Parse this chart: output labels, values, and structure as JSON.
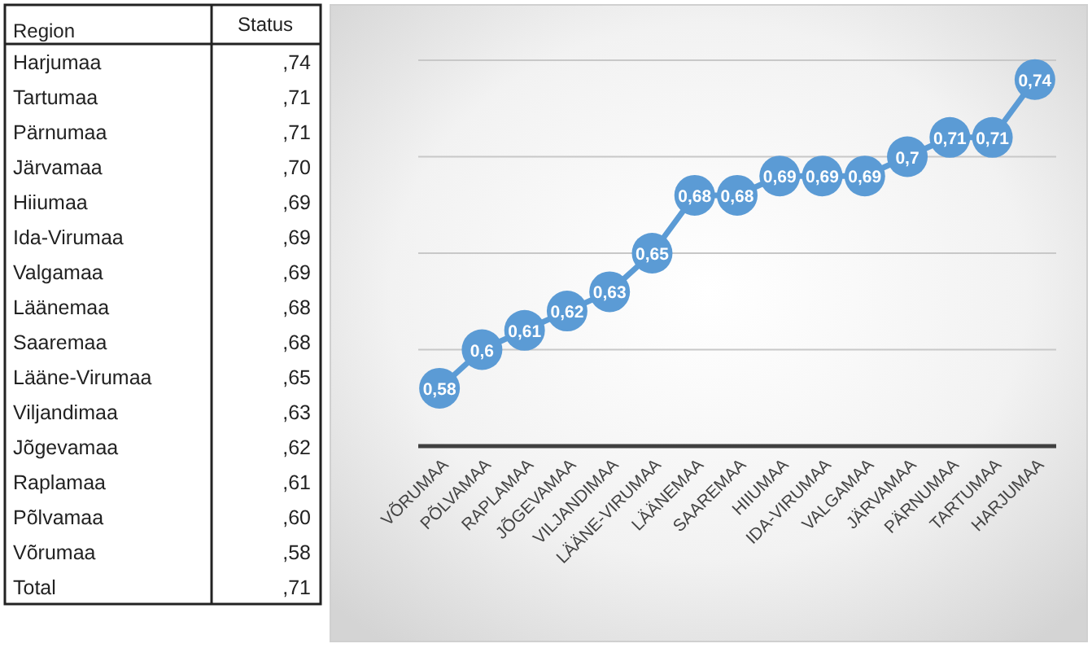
{
  "chart_data": [
    {
      "type": "other",
      "annotations": [
        "Region",
        "Status"
      ],
      "categories": [
        "Harjumaa",
        "Tartumaa",
        "Pärnumaa",
        "Järvamaa",
        "Hiiumaa",
        "Ida-Virumaa",
        "Valgamaa",
        "Läänemaa",
        "Saaremaa",
        "Lääne-Virumaa",
        "Viljandimaa",
        "Jõgevamaa",
        "Raplamaa",
        "Põlvamaa",
        "Võrumaa",
        "Total"
      ],
      "value_labels": [
        ",74",
        ",71",
        ",71",
        ",70",
        ",69",
        ",69",
        ",69",
        ",68",
        ",68",
        ",65",
        ",63",
        ",62",
        ",61",
        ",60",
        ",58",
        ",71"
      ]
    },
    {
      "type": "line",
      "categories": [
        "VÕRUMAA",
        "PÕLVAMAA",
        "RAPLAMAA",
        "JÕGEVAMAA",
        "VILJANDIMAA",
        "LÄÄNE-VIRUMAA",
        "LÄÄNEMAA",
        "SAAREMAA",
        "HIIUMAA",
        "IDA-VIRUMAA",
        "VALGAMAA",
        "JÄRVAMAA",
        "PÄRNUMAA",
        "TARTUMAA",
        "HARJUMAA"
      ],
      "series": [
        {
          "color": "#5b9bd5",
          "values": [
            0.58,
            0.6,
            0.61,
            0.62,
            0.63,
            0.65,
            0.68,
            0.68,
            0.69,
            0.69,
            0.69,
            0.7,
            0.71,
            0.71,
            0.74
          ],
          "value_labels": [
            "0,58",
            "0,6",
            "0,61",
            "0,62",
            "0,63",
            "0,65",
            "0,68",
            "0,68",
            "0,69",
            "0,69",
            "0,69",
            "0,7",
            "0,71",
            "0,71",
            "0,74"
          ]
        }
      ],
      "ylim": [
        0.55,
        0.75
      ],
      "yticks": [
        {
          "value": 0.6,
          "label": null
        },
        {
          "value": 0.65,
          "label": null
        },
        {
          "value": 0.7,
          "label": null
        },
        {
          "value": 0.75,
          "label": null
        }
      ],
      "grid": "y",
      "tick_labels": "x",
      "marker": "circle",
      "line_style": "solid"
    }
  ]
}
